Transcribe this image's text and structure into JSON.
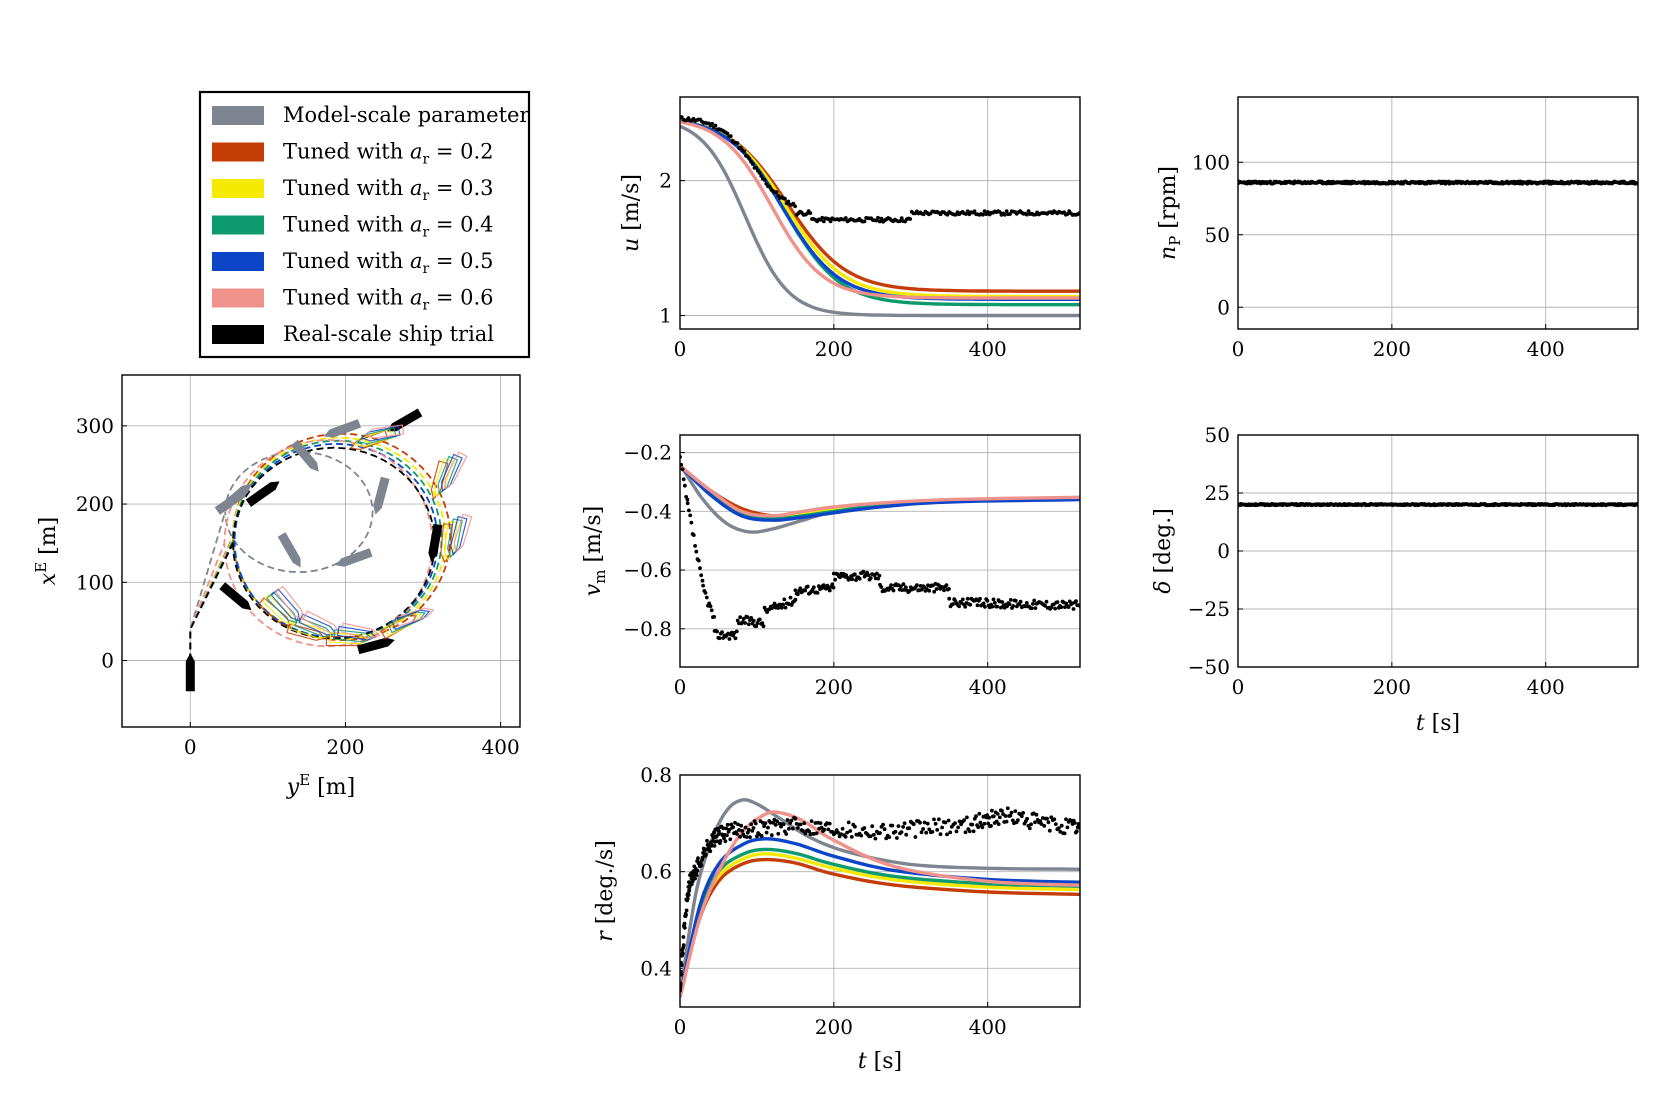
{
  "legend": {
    "items": [
      {
        "label": "Model-scale parameter",
        "color": "#7f8590"
      },
      {
        "label": "Tuned with a_r = 0.2",
        "color": "#c43c06"
      },
      {
        "label": "Tuned with a_r = 0.3",
        "color": "#f5ea00"
      },
      {
        "label": "Tuned with a_r = 0.4",
        "color": "#0e9a6c"
      },
      {
        "label": "Tuned with a_r = 0.5",
        "color": "#0d45c9"
      },
      {
        "label": "Tuned with a_r = 0.6",
        "color": "#f0928c"
      },
      {
        "label": "Real-scale ship trial",
        "color": "#000000"
      }
    ]
  },
  "chart_data": [
    {
      "id": "trajectory",
      "type": "line",
      "xlabel": "y^E [m]",
      "ylabel": "x^E [m]",
      "xlim": [
        -88,
        425
      ],
      "ylim": [
        -85,
        365
      ],
      "xticks": [
        "0",
        "200",
        "400"
      ],
      "yticks": [
        "0",
        "100",
        "200",
        "300"
      ],
      "grid": true,
      "series": [
        {
          "name": "Model-scale parameter",
          "kind": "turning-circle-dashed",
          "center": [
            140,
            190
          ],
          "radius": [
            95,
            77
          ]
        },
        {
          "name": "Tuned with a_r = 0.2",
          "kind": "turning-circle-dashed",
          "center": [
            195,
            158
          ],
          "radius": [
            140,
            132
          ]
        },
        {
          "name": "Tuned with a_r = 0.3",
          "kind": "turning-circle-dashed",
          "center": [
            192,
            156
          ],
          "radius": [
            137,
            129
          ]
        },
        {
          "name": "Tuned with a_r = 0.4",
          "kind": "turning-circle-dashed",
          "center": [
            190,
            155
          ],
          "radius": [
            134,
            126
          ]
        },
        {
          "name": "Tuned with a_r = 0.5",
          "kind": "turning-circle-dashed",
          "center": [
            188,
            153
          ],
          "radius": [
            131,
            124
          ]
        },
        {
          "name": "Tuned with a_r = 0.6",
          "kind": "turning-circle-dashed",
          "center": [
            178,
            150
          ],
          "radius": [
            134,
            132
          ]
        },
        {
          "name": "Real-scale ship trial",
          "kind": "turning-circle-dashed",
          "center": [
            185,
            150
          ],
          "radius": [
            130,
            122
          ]
        }
      ]
    },
    {
      "id": "u",
      "type": "line",
      "xlabel": "",
      "ylabel": "u [m/s]",
      "xlim": [
        0,
        520
      ],
      "ylim": [
        0.9,
        2.62
      ],
      "xticks": [
        "0",
        "200",
        "400"
      ],
      "yticks": [
        "1",
        "2"
      ],
      "grid": true,
      "series": [
        {
          "name": "Model-scale parameter",
          "start": 2.47,
          "end": 1.0,
          "mid": 85,
          "width": 28
        },
        {
          "name": "Tuned with a_r = 0.2",
          "start": 2.47,
          "end": 1.18,
          "mid": 140,
          "width": 38
        },
        {
          "name": "Tuned with a_r = 0.3",
          "start": 2.47,
          "end": 1.14,
          "mid": 138,
          "width": 37
        },
        {
          "name": "Tuned with a_r = 0.4",
          "start": 2.47,
          "end": 1.08,
          "mid": 136,
          "width": 36
        },
        {
          "name": "Tuned with a_r = 0.5",
          "start": 2.47,
          "end": 1.12,
          "mid": 134,
          "width": 36
        },
        {
          "name": "Tuned with a_r = 0.6",
          "start": 2.47,
          "end": 1.13,
          "mid": 120,
          "width": 33
        },
        {
          "name": "Real-scale ship trial",
          "kind": "scatter",
          "start": 2.47,
          "end": 1.76,
          "mid": 95,
          "width": 22
        }
      ]
    },
    {
      "id": "nP",
      "type": "scatter",
      "xlabel": "",
      "ylabel": "n_P [rpm]",
      "xlim": [
        0,
        520
      ],
      "ylim": [
        -15,
        145
      ],
      "xticks": [
        "0",
        "200",
        "400"
      ],
      "yticks": [
        "0",
        "50",
        "100"
      ],
      "grid": true,
      "series": [
        {
          "name": "Real-scale ship trial",
          "value": 86
        }
      ]
    },
    {
      "id": "vm",
      "type": "line",
      "xlabel": "",
      "ylabel": "v_m [m/s]",
      "xlim": [
        0,
        520
      ],
      "ylim": [
        -0.93,
        -0.14
      ],
      "xticks": [
        "0",
        "200",
        "400"
      ],
      "yticks": [
        "-0.8",
        "-0.6",
        "-0.4",
        "-0.2"
      ],
      "grid": true,
      "series": [
        {
          "name": "Model-scale parameter",
          "points": [
            [
              0,
              -0.24
            ],
            [
              30,
              -0.36
            ],
            [
              60,
              -0.44
            ],
            [
              90,
              -0.47
            ],
            [
              120,
              -0.46
            ],
            [
              160,
              -0.43
            ],
            [
              200,
              -0.4
            ],
            [
              260,
              -0.375
            ],
            [
              350,
              -0.362
            ],
            [
              520,
              -0.355
            ]
          ]
        },
        {
          "name": "Tuned with a_r = 0.2",
          "points": [
            [
              0,
              -0.245
            ],
            [
              40,
              -0.33
            ],
            [
              80,
              -0.39
            ],
            [
              120,
              -0.415
            ],
            [
              160,
              -0.41
            ],
            [
              200,
              -0.395
            ],
            [
              260,
              -0.375
            ],
            [
              350,
              -0.362
            ],
            [
              520,
              -0.355
            ]
          ]
        },
        {
          "name": "Tuned with a_r = 0.3",
          "points": [
            [
              0,
              -0.245
            ],
            [
              40,
              -0.335
            ],
            [
              80,
              -0.4
            ],
            [
              120,
              -0.42
            ],
            [
              160,
              -0.41
            ],
            [
              200,
              -0.395
            ],
            [
              260,
              -0.375
            ],
            [
              350,
              -0.362
            ],
            [
              520,
              -0.355
            ]
          ]
        },
        {
          "name": "Tuned with a_r = 0.4",
          "points": [
            [
              0,
              -0.245
            ],
            [
              40,
              -0.34
            ],
            [
              80,
              -0.405
            ],
            [
              120,
              -0.425
            ],
            [
              160,
              -0.415
            ],
            [
              200,
              -0.4
            ],
            [
              260,
              -0.38
            ],
            [
              350,
              -0.365
            ],
            [
              520,
              -0.357
            ]
          ]
        },
        {
          "name": "Tuned with a_r = 0.5",
          "points": [
            [
              0,
              -0.245
            ],
            [
              40,
              -0.345
            ],
            [
              80,
              -0.415
            ],
            [
              120,
              -0.43
            ],
            [
              160,
              -0.42
            ],
            [
              200,
              -0.405
            ],
            [
              260,
              -0.385
            ],
            [
              350,
              -0.368
            ],
            [
              520,
              -0.36
            ]
          ]
        },
        {
          "name": "Tuned with a_r = 0.6",
          "points": [
            [
              0,
              -0.245
            ],
            [
              40,
              -0.33
            ],
            [
              80,
              -0.4
            ],
            [
              120,
              -0.415
            ],
            [
              160,
              -0.4
            ],
            [
              200,
              -0.385
            ],
            [
              260,
              -0.372
            ],
            [
              350,
              -0.36
            ],
            [
              520,
              -0.352
            ]
          ]
        },
        {
          "name": "Real-scale ship trial",
          "kind": "scatter",
          "segments": [
            [
              0,
              10,
              -0.22,
              -0.38
            ],
            [
              10,
              30,
              -0.38,
              -0.66
            ],
            [
              30,
              45,
              -0.66,
              -0.77
            ],
            [
              45,
              75,
              -0.82,
              -0.82
            ],
            [
              75,
              110,
              -0.77,
              -0.78
            ],
            [
              110,
              150,
              -0.74,
              -0.7
            ],
            [
              150,
              200,
              -0.67,
              -0.66
            ],
            [
              200,
              260,
              -0.62,
              -0.62
            ],
            [
              260,
              350,
              -0.66,
              -0.66
            ],
            [
              350,
              520,
              -0.71,
              -0.72
            ]
          ]
        }
      ]
    },
    {
      "id": "delta",
      "type": "scatter",
      "xlabel": "t [s]",
      "ylabel": "δ [deg.]",
      "xlim": [
        0,
        520
      ],
      "ylim": [
        -50,
        50
      ],
      "xticks": [
        "0",
        "200",
        "400"
      ],
      "yticks": [
        "-50",
        "-25",
        "0",
        "25",
        "50"
      ],
      "grid": true,
      "series": [
        {
          "name": "Real-scale ship trial",
          "value": 20
        }
      ]
    },
    {
      "id": "r",
      "type": "line",
      "xlabel": "t [s]",
      "ylabel": "r [deg./s]",
      "xlim": [
        0,
        520
      ],
      "ylim": [
        0.32,
        0.8
      ],
      "xticks": [
        "0",
        "200",
        "400"
      ],
      "yticks": [
        "0.4",
        "0.6",
        "0.8"
      ],
      "grid": true,
      "series": [
        {
          "name": "Model-scale parameter",
          "points": [
            [
              0,
              0.34
            ],
            [
              20,
              0.55
            ],
            [
              40,
              0.66
            ],
            [
              60,
              0.725
            ],
            [
              80,
              0.748
            ],
            [
              100,
              0.74
            ],
            [
              130,
              0.71
            ],
            [
              170,
              0.67
            ],
            [
              220,
              0.64
            ],
            [
              300,
              0.615
            ],
            [
              400,
              0.607
            ],
            [
              520,
              0.605
            ]
          ]
        },
        {
          "name": "Tuned with a_r = 0.2",
          "points": [
            [
              0,
              0.34
            ],
            [
              25,
              0.5
            ],
            [
              50,
              0.58
            ],
            [
              80,
              0.615
            ],
            [
              110,
              0.625
            ],
            [
              150,
              0.618
            ],
            [
              200,
              0.595
            ],
            [
              280,
              0.572
            ],
            [
              400,
              0.558
            ],
            [
              520,
              0.553
            ]
          ]
        },
        {
          "name": "Tuned with a_r = 0.3",
          "points": [
            [
              0,
              0.34
            ],
            [
              25,
              0.51
            ],
            [
              50,
              0.59
            ],
            [
              80,
              0.625
            ],
            [
              110,
              0.637
            ],
            [
              150,
              0.628
            ],
            [
              200,
              0.607
            ],
            [
              280,
              0.583
            ],
            [
              400,
              0.568
            ],
            [
              520,
              0.563
            ]
          ]
        },
        {
          "name": "Tuned with a_r = 0.4",
          "points": [
            [
              0,
              0.34
            ],
            [
              25,
              0.515
            ],
            [
              50,
              0.6
            ],
            [
              80,
              0.635
            ],
            [
              110,
              0.646
            ],
            [
              150,
              0.638
            ],
            [
              200,
              0.615
            ],
            [
              280,
              0.59
            ],
            [
              400,
              0.575
            ],
            [
              520,
              0.57
            ]
          ]
        },
        {
          "name": "Tuned with a_r = 0.5",
          "points": [
            [
              0,
              0.34
            ],
            [
              25,
              0.525
            ],
            [
              50,
              0.615
            ],
            [
              80,
              0.655
            ],
            [
              110,
              0.668
            ],
            [
              150,
              0.658
            ],
            [
              200,
              0.632
            ],
            [
              280,
              0.602
            ],
            [
              400,
              0.584
            ],
            [
              520,
              0.578
            ]
          ]
        },
        {
          "name": "Tuned with a_r = 0.6",
          "points": [
            [
              0,
              0.34
            ],
            [
              25,
              0.5
            ],
            [
              50,
              0.6
            ],
            [
              80,
              0.68
            ],
            [
              110,
              0.718
            ],
            [
              130,
              0.722
            ],
            [
              160,
              0.705
            ],
            [
              200,
              0.665
            ],
            [
              280,
              0.61
            ],
            [
              400,
              0.58
            ],
            [
              520,
              0.572
            ]
          ]
        },
        {
          "name": "Real-scale ship trial",
          "kind": "scatter",
          "points": [
            [
              0,
              0.37
            ],
            [
              10,
              0.55
            ],
            [
              20,
              0.6
            ],
            [
              40,
              0.66
            ],
            [
              60,
              0.68
            ],
            [
              100,
              0.69
            ],
            [
              150,
              0.695
            ],
            [
              200,
              0.69
            ],
            [
              260,
              0.685
            ],
            [
              320,
              0.69
            ],
            [
              380,
              0.7
            ],
            [
              420,
              0.715
            ],
            [
              470,
              0.7
            ],
            [
              520,
              0.69
            ]
          ]
        }
      ]
    }
  ]
}
